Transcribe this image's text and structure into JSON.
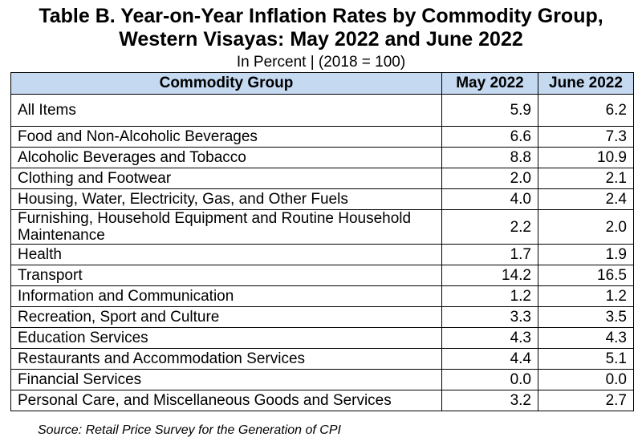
{
  "title_line1": "Table B. Year-on-Year Inflation Rates by Commodity Group,",
  "title_line2": "Western Visayas: May 2022 and June 2022",
  "subtitle": "In Percent | (2018 = 100)",
  "headers": {
    "group": "Commodity Group",
    "may": "May 2022",
    "june": "June 2022"
  },
  "rows": [
    {
      "group": "All Items",
      "may": "5.9",
      "june": "6.2"
    },
    {
      "group": "Food and Non-Alcoholic Beverages",
      "may": "6.6",
      "june": "7.3"
    },
    {
      "group": "Alcoholic Beverages and Tobacco",
      "may": "8.8",
      "june": "10.9"
    },
    {
      "group": "Clothing and Footwear",
      "may": "2.0",
      "june": "2.1"
    },
    {
      "group": "Housing, Water, Electricity, Gas, and Other Fuels",
      "may": "4.0",
      "june": "2.4"
    },
    {
      "group": "Furnishing, Household Equipment and Routine Household Maintenance",
      "may": "2.2",
      "june": "2.0"
    },
    {
      "group": "Health",
      "may": "1.7",
      "june": "1.9"
    },
    {
      "group": "Transport",
      "may": "14.2",
      "june": "16.5"
    },
    {
      "group": "Information and Communication",
      "may": "1.2",
      "june": "1.2"
    },
    {
      "group": "Recreation, Sport and Culture",
      "may": "3.3",
      "june": "3.5"
    },
    {
      "group": "Education Services",
      "may": "4.3",
      "june": "4.3"
    },
    {
      "group": "Restaurants and Accommodation Services",
      "may": "4.4",
      "june": "5.1"
    },
    {
      "group": "Financial Services",
      "may": "0.0",
      "june": "0.0"
    },
    {
      "group": "Personal Care, and Miscellaneous Goods and Services",
      "may": "3.2",
      "june": "2.7"
    }
  ],
  "source": "Source: Retail Price Survey for the Generation of CPI",
  "colors": {
    "header_bg": "#c5d9f1"
  }
}
